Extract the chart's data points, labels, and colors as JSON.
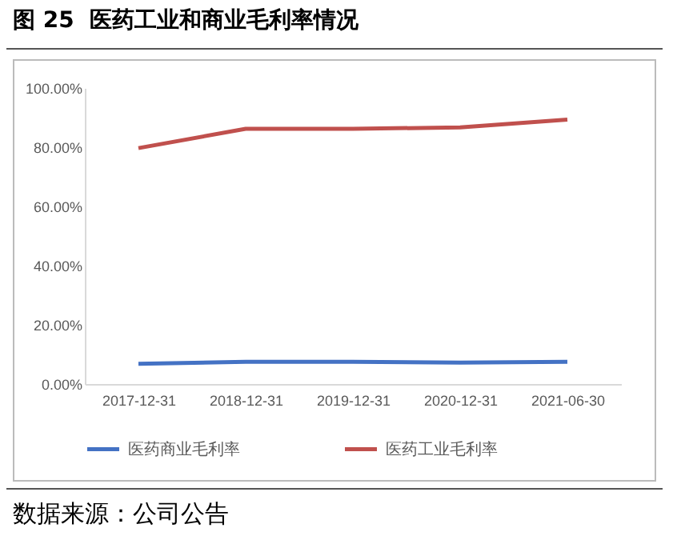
{
  "chart_data": {
    "type": "line",
    "title": "图 25  医药工业和商业毛利率情况",
    "categories": [
      "2017-12-31",
      "2018-12-31",
      "2019-12-31",
      "2020-12-31",
      "2021-06-30"
    ],
    "series": [
      {
        "name": "医药商业毛利率",
        "color": "#4472c4",
        "values": [
          6.8,
          7.5,
          7.5,
          7.2,
          7.5
        ]
      },
      {
        "name": "医药工业毛利率",
        "color": "#c0504d",
        "values": [
          79.7,
          86.2,
          86.2,
          86.7,
          89.3
        ]
      }
    ],
    "ylim": [
      0,
      100
    ],
    "yticks": [
      {
        "value": 0,
        "label": "0.00%"
      },
      {
        "value": 20,
        "label": "20.00%"
      },
      {
        "value": 40,
        "label": "40.00%"
      },
      {
        "value": 60,
        "label": "60.00%"
      },
      {
        "value": 80,
        "label": "80.00%"
      },
      {
        "value": 100,
        "label": "100.00%"
      }
    ],
    "grid": false,
    "legend": "bottom",
    "marker": "none",
    "line_style": "solid",
    "annotations": [
      "数据来源：公司公告"
    ]
  }
}
